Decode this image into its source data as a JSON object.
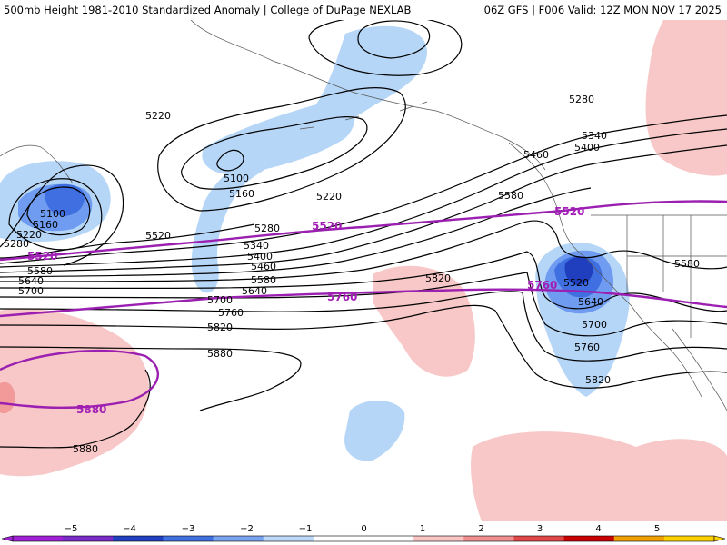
{
  "header": {
    "title": "500mb Height 1981-2010 Standardized Anomaly | College of DuPage NEXLAB",
    "run_info": "06Z GFS | F006 Valid: 12Z MON NOV 17 2025"
  },
  "colors": {
    "contour": "#000000",
    "normal_contour": "#9b1fb0",
    "coast": "#555555",
    "anom_neg": [
      "#a020d8",
      "#6a2fbf",
      "#1f3fbf",
      "#3f6fe0",
      "#6f9cf0",
      "#b6d6f8"
    ],
    "anom_pos": [
      "#f8c8c8",
      "#f29a9a",
      "#e85050",
      "#c00000",
      "#f0a000",
      "#ffd000"
    ]
  },
  "map": {
    "contours": [
      {
        "value": "5100",
        "labels": [
          "5100",
          "5100"
        ]
      },
      {
        "value": "5160",
        "labels": [
          "5160",
          "5160"
        ]
      },
      {
        "value": "5220",
        "labels": [
          "5220",
          "5220",
          "5220"
        ]
      },
      {
        "value": "5280",
        "labels": [
          "5280",
          "5280",
          "5280"
        ]
      },
      {
        "value": "5340",
        "labels": [
          "5340",
          "5340"
        ]
      },
      {
        "value": "5400",
        "labels": [
          "5400",
          "5400"
        ]
      },
      {
        "value": "5460",
        "labels": [
          "5460",
          "5460"
        ]
      },
      {
        "value": "5520",
        "labels": [
          "5520",
          "5520"
        ]
      },
      {
        "value": "5580",
        "labels": [
          "5580",
          "5580",
          "5580",
          "5580"
        ]
      },
      {
        "value": "5640",
        "labels": [
          "5640",
          "5640",
          "5640"
        ]
      },
      {
        "value": "5700",
        "labels": [
          "5700",
          "5700",
          "5700"
        ]
      },
      {
        "value": "5760",
        "labels": [
          "5760",
          "5760"
        ]
      },
      {
        "value": "5820",
        "labels": [
          "5820",
          "5820",
          "5820"
        ]
      },
      {
        "value": "5880",
        "labels": [
          "5880",
          "5880"
        ]
      }
    ],
    "normal_contours": [
      {
        "value": "5520",
        "labels": [
          "5520",
          "5520",
          "5520"
        ]
      },
      {
        "value": "5760",
        "labels": [
          "5760",
          "5760"
        ]
      },
      {
        "value": "5880",
        "labels": [
          "5880"
        ]
      }
    ]
  },
  "colorbar": {
    "ticks": [
      "−5",
      "−4",
      "−3",
      "−2",
      "−1",
      "0",
      "1",
      "2",
      "3",
      "4",
      "5"
    ],
    "fill_colors": [
      "#a020d8",
      "#7a2bc8",
      "#2040c0",
      "#4070e0",
      "#78a4f0",
      "#bcd8f8",
      "#ffffff",
      "#ffffff",
      "#f8c4c4",
      "#f09090",
      "#e04848",
      "#c80000",
      "#f0a000",
      "#ffd000"
    ]
  }
}
